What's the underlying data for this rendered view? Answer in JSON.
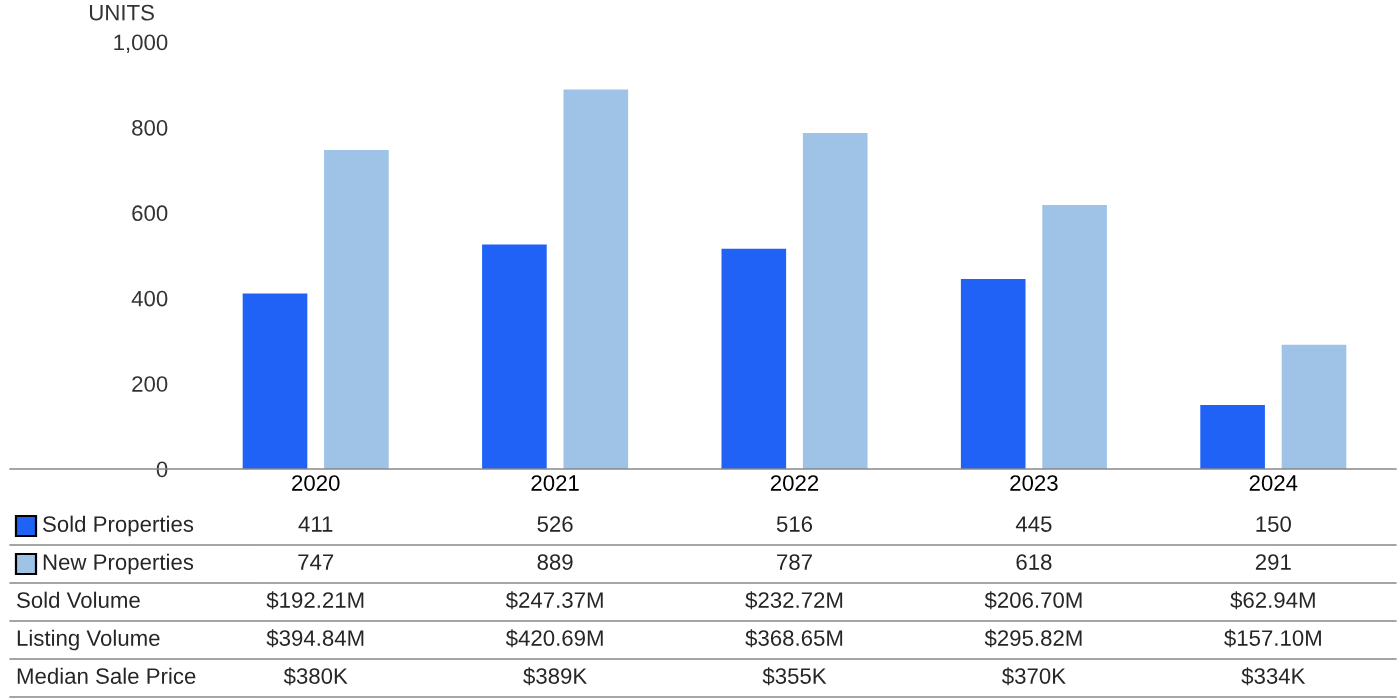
{
  "chart_data": {
    "type": "bar",
    "ylabel": "UNITS",
    "categories": [
      "2020",
      "2021",
      "2022",
      "2023",
      "2024"
    ],
    "series": [
      {
        "name": "Sold Properties",
        "color": "#1f62f5",
        "values": [
          411,
          526,
          516,
          445,
          150
        ]
      },
      {
        "name": "New Properties",
        "color": "#9ec3e6",
        "values": [
          747,
          889,
          787,
          618,
          291
        ]
      }
    ],
    "ylim": [
      0,
      1000
    ],
    "yticks": [
      0,
      200,
      400,
      600,
      800,
      {
        "value": 1000,
        "label": "1,000"
      }
    ],
    "grid": false,
    "data_labels": true,
    "legend": "bottom left",
    "annotations": [
      "Sold Volume",
      "$192.21M",
      "$247.37M",
      "$232.72M",
      "$206.70M",
      "$62.94M",
      "Listing Volume",
      "$394.84M",
      "$420.69M",
      "$368.65M",
      "$295.82M",
      "$157.10M",
      "Median Sale Price",
      "$380K",
      "$389K",
      "$355K",
      "$370K",
      "$334K"
    ]
  }
}
